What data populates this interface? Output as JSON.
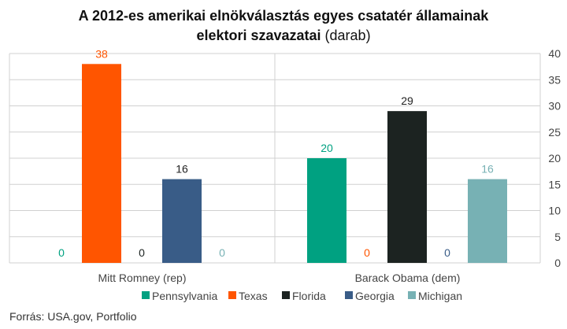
{
  "title_line1": "A 2012-es amerikai elnökválasztás egyes csatatér államainak",
  "title_line2_bold": "elektori szavazatai",
  "title_line2_rest": " (darab)",
  "source": "Forrás: USA.gov, Portfolio",
  "colors": {
    "Pennsylvania": "#00a181",
    "Texas": "#ff5500",
    "Florida": "#1c2321",
    "Georgia": "#395c87",
    "Michigan": "#77b1b4",
    "grid": "#d0d0d0",
    "axis_text": "#444444"
  },
  "chart_data": {
    "type": "bar",
    "title": "A 2012-es amerikai elnökválasztás egyes csatatér államainak elektori szavazatai (darab)",
    "categories": [
      "Mitt Romney (rep)",
      "Barack Obama (dem)"
    ],
    "series": [
      {
        "name": "Pennsylvania",
        "values": [
          0,
          20
        ]
      },
      {
        "name": "Texas",
        "values": [
          38,
          0
        ]
      },
      {
        "name": "Florida",
        "values": [
          0,
          29
        ]
      },
      {
        "name": "Georgia",
        "values": [
          16,
          0
        ]
      },
      {
        "name": "Michigan",
        "values": [
          0,
          16
        ]
      }
    ],
    "ylim": [
      0,
      40
    ],
    "yticks": [
      0,
      5,
      10,
      15,
      20,
      25,
      30,
      35,
      40
    ],
    "y_axis_side": "right",
    "grid": true,
    "legend": "bottom"
  }
}
